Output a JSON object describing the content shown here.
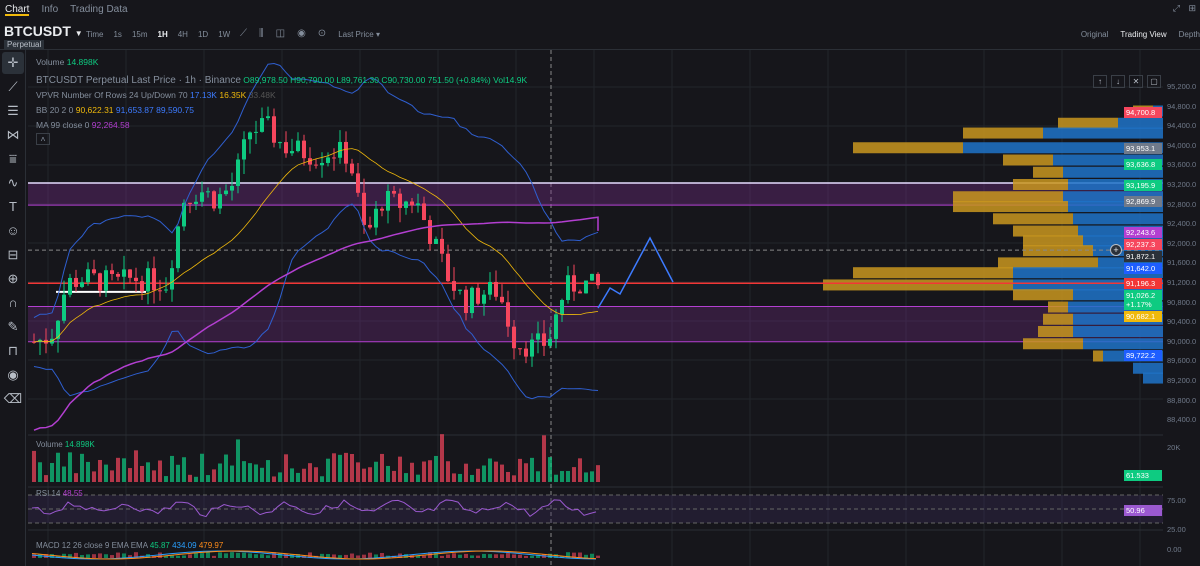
{
  "tabs": [
    {
      "label": "Chart",
      "active": true
    },
    {
      "label": "Info"
    },
    {
      "label": "Trading Data"
    }
  ],
  "symbol": "BTCUSDT",
  "market_type": "Perpetual",
  "timeframes": [
    {
      "label": "Time"
    },
    {
      "label": "1s"
    },
    {
      "label": "15m"
    },
    {
      "label": "1H",
      "active": true
    },
    {
      "label": "4H"
    },
    {
      "label": "1D"
    },
    {
      "label": "1W"
    }
  ],
  "price_source": "Last Price",
  "views": [
    {
      "label": "Original"
    },
    {
      "label": "Trading View",
      "active": true
    },
    {
      "label": "Depth"
    }
  ],
  "legend": {
    "volume_label": "Volume",
    "volume_value": "14.898K",
    "title": "BTCUSDT Perpetual Last Price · 1h · Binance",
    "open": "O89,978.50",
    "high": "H90,790.00",
    "low": "L89,761.30",
    "close": "C90,730.00",
    "change": "751.50 (+0.84%)",
    "vol": "Vol14.9K",
    "vpvr_label": "VPVR Number Of Rows 24 Up/Down 70",
    "vpvr_up": "17.13K",
    "vpvr_down": "16.35K",
    "vpvr_total": "33.48K",
    "bb_label": "BB 20 2 0",
    "bb_mid": "90,622.31",
    "bb_upper": "91,653.87",
    "bb_lower": "89,590.75",
    "ma_label": "MA 99 close 0",
    "ma_value": "92,264.58"
  },
  "price_axis": [
    "95,200.0",
    "94,800.0",
    "94,400.0",
    "94,000.0",
    "93,600.0",
    "93,200.0",
    "92,800.0",
    "92,400.0",
    "92,000.0",
    "91,600.0",
    "91,200.0",
    "90,800.0",
    "90,400.0",
    "90,000.0",
    "89,600.0",
    "89,200.0",
    "88,800.0",
    "88,400.0"
  ],
  "badges": [
    {
      "text": "94,700.8",
      "color": "#f6465d",
      "price": 94700
    },
    {
      "text": "93,953.1",
      "color": "#707a8a",
      "price": 93953
    },
    {
      "text": "93,636.8",
      "color": "#0ecb81",
      "price": 93636
    },
    {
      "text": "93,195.9",
      "color": "#0ecb81",
      "price": 93195
    },
    {
      "text": "92,869.9",
      "color": "#707a8a",
      "price": 92869
    },
    {
      "text": "92,243.6",
      "color": "#b33fd1",
      "price": 92243
    },
    {
      "text": "92,237.3",
      "color": "#f6465d",
      "price": 92237
    },
    {
      "text": "91,872.1",
      "color": "#2b3139",
      "price": 91872
    },
    {
      "text": "91,642.0",
      "color": "#1e5eff",
      "price": 91642
    },
    {
      "text": "91,196.3",
      "color": "#f23636",
      "price": 91196
    },
    {
      "text": "91,026.2",
      "sub": "+1.17%",
      "color": "#0ecb81",
      "price": 91026
    },
    {
      "text": "90,682.1",
      "color": "#f0b90b",
      "price": 90682
    },
    {
      "text": "89,722.2",
      "color": "#1e5eff",
      "price": 89722
    }
  ],
  "volume_pane": {
    "label": "Volume",
    "value": "14.898K",
    "axis": "20K",
    "badge": "61.533"
  },
  "rsi_pane": {
    "label": "RSI 14",
    "value": "48.55",
    "axis": [
      "75.00",
      "25.00"
    ],
    "badge": "50.96"
  },
  "macd_pane": {
    "label": "MACD 12 26 close 9 EMA EMA",
    "v1": "45.87",
    "v2": "434.09",
    "v3": "479.97",
    "axis": "0.00"
  },
  "colors": {
    "up": "#0ecb81",
    "down": "#f6465d",
    "bb": "#2f5fd0",
    "ma": "#b33fd1",
    "accent": "#f0b90b"
  },
  "chart_data": {
    "type": "candlestick",
    "path_prices": [
      90000,
      90100,
      91200,
      91300,
      91250,
      91200,
      91300,
      91250,
      91200,
      92900,
      93100,
      92900,
      93200,
      94300,
      94400,
      94000,
      93900,
      93800,
      93900,
      93800,
      92100,
      92900,
      92800,
      92900,
      92100,
      91300,
      90800,
      91000,
      91050,
      90000,
      89900,
      90000,
      91100,
      91200,
      91100
    ]
  }
}
